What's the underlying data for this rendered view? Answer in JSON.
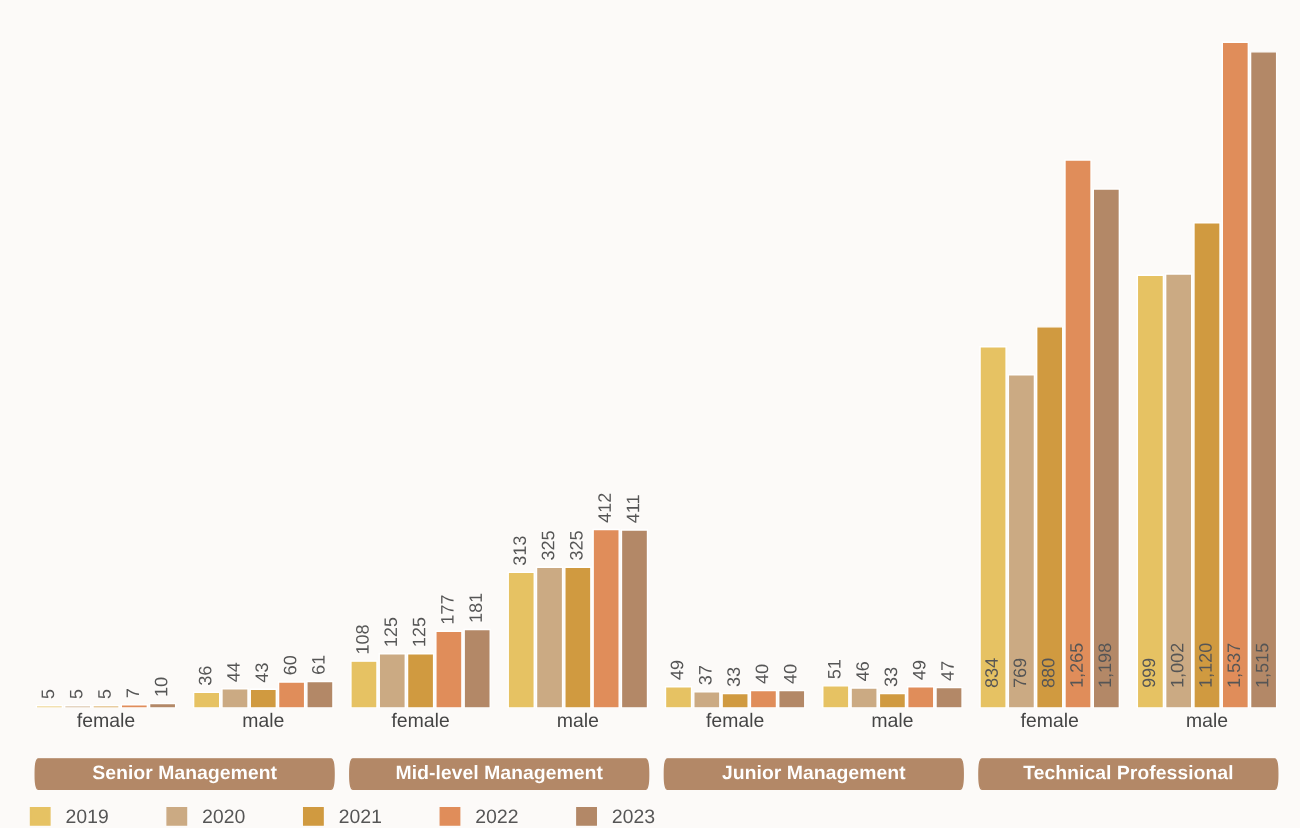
{
  "chart_data": {
    "type": "bar",
    "categories": [
      "female",
      "male",
      "female",
      "male",
      "female",
      "male",
      "female",
      "male"
    ],
    "series": [
      {
        "name": "2019",
        "color": "#e6c263",
        "values": [
          5,
          36,
          108,
          313,
          49,
          51,
          834,
          999
        ],
        "value_labels": [
          "5",
          "36",
          "108",
          "313",
          "49",
          "51",
          "834",
          "999"
        ]
      },
      {
        "name": "2020",
        "color": "#cbaa83",
        "values": [
          5,
          44,
          125,
          325,
          37,
          46,
          769,
          1002
        ],
        "value_labels": [
          "5",
          "44",
          "125",
          "325",
          "37",
          "46",
          "769",
          "1,002"
        ]
      },
      {
        "name": "2021",
        "color": "#d09a40",
        "values": [
          5,
          43,
          125,
          325,
          33,
          33,
          880,
          1120
        ],
        "value_labels": [
          "5",
          "43",
          "125",
          "325",
          "33",
          "33",
          "880",
          "1,120"
        ]
      },
      {
        "name": "2022",
        "color": "#e08d5a",
        "values": [
          7,
          60,
          177,
          412,
          40,
          49,
          1265,
          1537
        ],
        "value_labels": [
          "7",
          "60",
          "177",
          "412",
          "40",
          "49",
          "1,265",
          "1,537"
        ]
      },
      {
        "name": "2023",
        "color": "#b38867",
        "values": [
          10,
          61,
          181,
          411,
          40,
          47,
          1198,
          1515
        ],
        "value_labels": [
          "10",
          "61",
          "181",
          "411",
          "40",
          "47",
          "1,198",
          "1,515"
        ]
      }
    ],
    "annotations": [
      "Senior Management",
      "Mid-level Management",
      "Junior Management",
      "Technical Professional"
    ],
    "legend": "bottom left",
    "grid": false
  }
}
